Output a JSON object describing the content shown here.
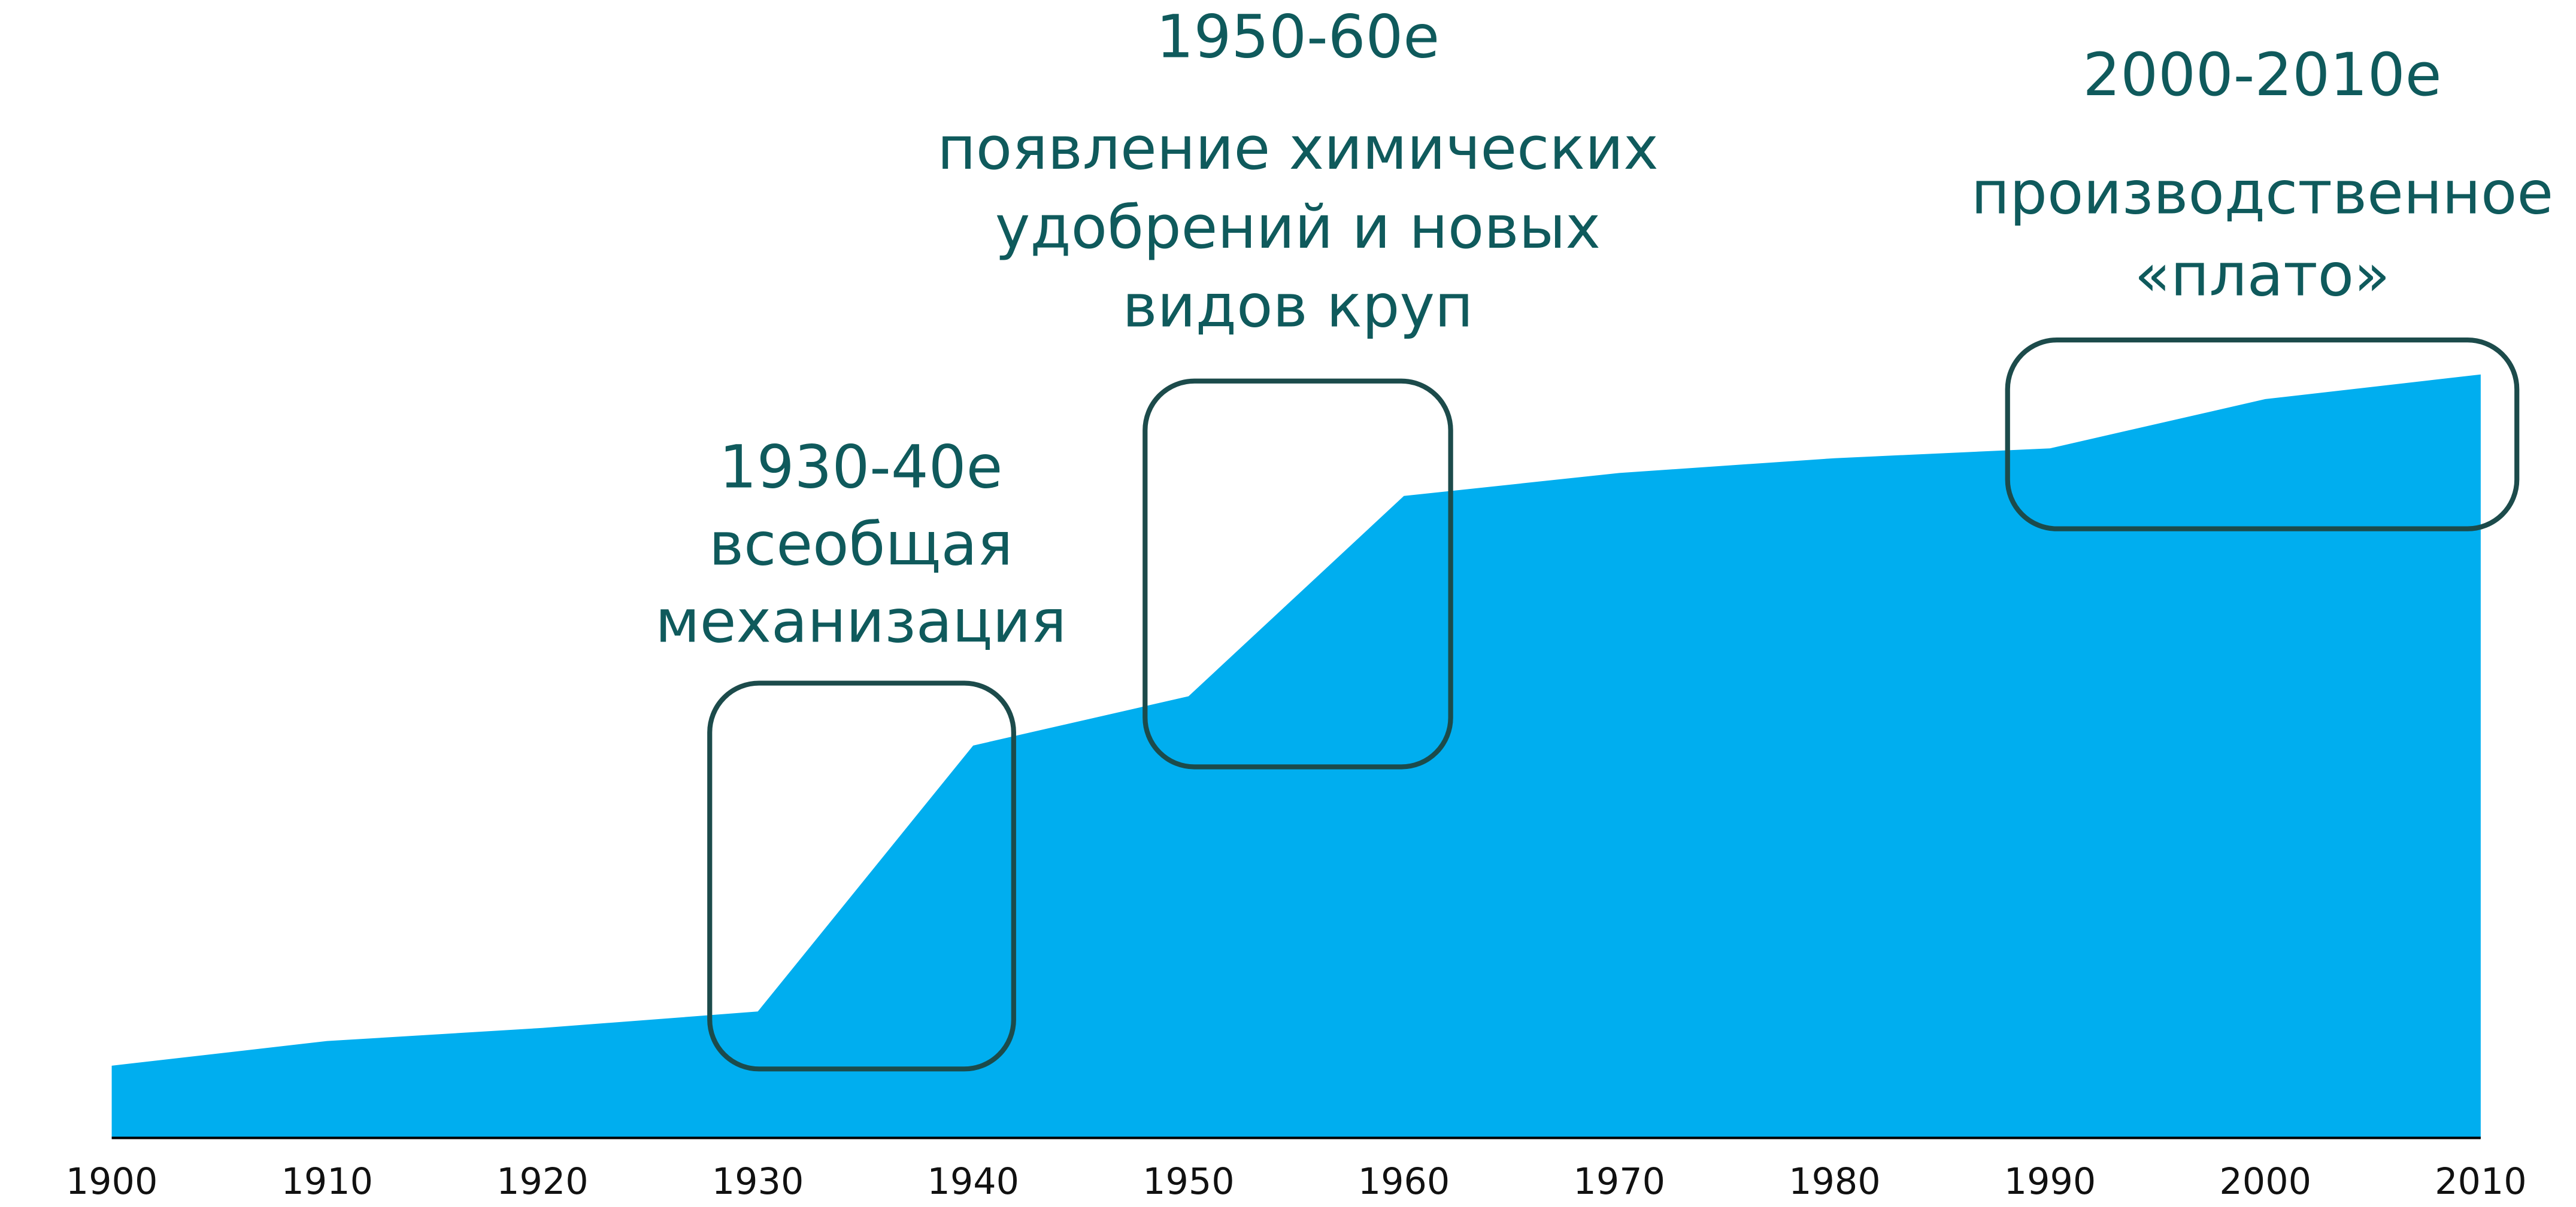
{
  "chart_data": {
    "type": "area",
    "color": "#00aeef",
    "x": [
      1900,
      1910,
      1920,
      1930,
      1940,
      1950,
      1960,
      1970,
      1980,
      1990,
      2000,
      2010
    ],
    "values": [
      8.8,
      11.8,
      13.4,
      15.4,
      47.8,
      53.8,
      78.2,
      81,
      82.8,
      84,
      90,
      93
    ],
    "xlim": [
      1900,
      2010
    ],
    "xticks": [
      1900,
      1910,
      1920,
      1930,
      1940,
      1950,
      1960,
      1970,
      1980,
      1990,
      2000,
      2010
    ],
    "ylim": [
      0,
      100
    ],
    "annotations": [
      {
        "period": "1930-40е",
        "text": [
          "всеобщая",
          "механизация"
        ]
      },
      {
        "period": "1950-60е",
        "text": [
          "появление химических",
          "удобрений и новых",
          "видов круп"
        ]
      },
      {
        "period": "2000-2010е",
        "text": [
          "производственное",
          "«плато»"
        ]
      }
    ]
  }
}
